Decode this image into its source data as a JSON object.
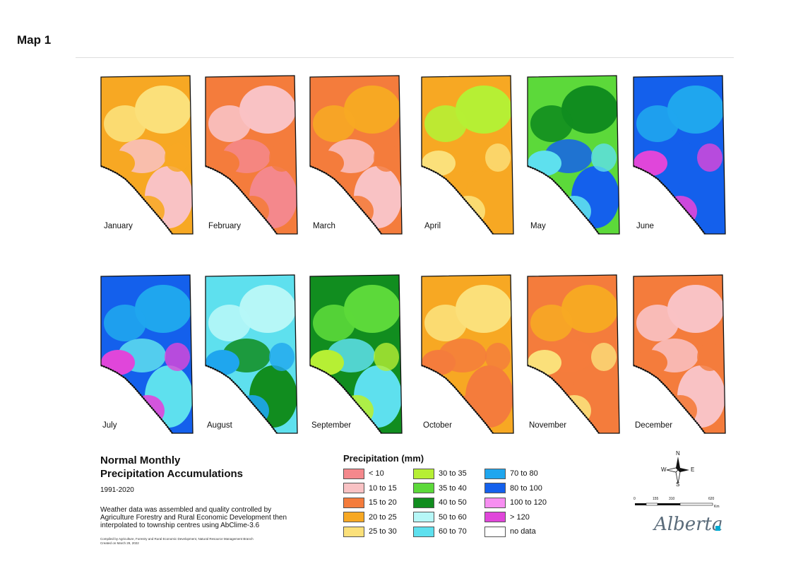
{
  "page_label": "Map 1",
  "title_line1": "Normal Monthly",
  "title_line2": "Precipitation Accumulations",
  "period": "1991-2020",
  "description": "Weather data was assembled and quality controlled by Agriculture Forestry and Rural Economic Development then interpolated to township centres using AbClime-3.6",
  "credit_line1": "Compiled by Agriculture, Forestry and Rural Economic Development, Natural Resource Management Branch",
  "credit_line2": "Created on March 29, 2022",
  "legend_title": "Precipitation (mm)",
  "legend": [
    {
      "label": "< 10",
      "color": "#f4888c"
    },
    {
      "label": "10 to 15",
      "color": "#f9c2c4"
    },
    {
      "label": "15 to 20",
      "color": "#f47c3c"
    },
    {
      "label": "20 to 25",
      "color": "#f7a823"
    },
    {
      "label": "25 to 30",
      "color": "#fbe07a"
    },
    {
      "label": "30 to 35",
      "color": "#b6ef34"
    },
    {
      "label": "35 to 40",
      "color": "#5cd93a"
    },
    {
      "label": "40 to 50",
      "color": "#118d1f"
    },
    {
      "label": "50 to  60",
      "color": "#b6f7f7"
    },
    {
      "label": "60 to 70",
      "color": "#5ee0ee"
    },
    {
      "label": "70 to 80",
      "color": "#1fa6ee"
    },
    {
      "label": "80 to 100",
      "color": "#1460ec"
    },
    {
      "label": "100 to 120",
      "color": "#f78ef1"
    },
    {
      "label": "> 120",
      "color": "#e046da"
    },
    {
      "label": "no data",
      "color": "#ffffff"
    }
  ],
  "months": [
    {
      "name": "January",
      "colors": [
        "#f7a823",
        "#fbe07a",
        "#f7a823",
        "#f9c2c4"
      ]
    },
    {
      "name": "February",
      "colors": [
        "#f47c3c",
        "#f9c2c4",
        "#f47c3c",
        "#f4888c"
      ]
    },
    {
      "name": "March",
      "colors": [
        "#f47c3c",
        "#f7a823",
        "#f47c3c",
        "#f9c2c4"
      ]
    },
    {
      "name": "April",
      "colors": [
        "#f7a823",
        "#b6ef34",
        "#fbe07a",
        "#f7a823"
      ]
    },
    {
      "name": "May",
      "colors": [
        "#5cd93a",
        "#118d1f",
        "#5ee0ee",
        "#1460ec"
      ]
    },
    {
      "name": "June",
      "colors": [
        "#1460ec",
        "#1fa6ee",
        "#e046da",
        "#1460ec"
      ]
    },
    {
      "name": "July",
      "colors": [
        "#1460ec",
        "#1fa6ee",
        "#e046da",
        "#5ee0ee"
      ]
    },
    {
      "name": "August",
      "colors": [
        "#5ee0ee",
        "#b6f7f7",
        "#1fa6ee",
        "#118d1f"
      ]
    },
    {
      "name": "September",
      "colors": [
        "#118d1f",
        "#5cd93a",
        "#b6ef34",
        "#5ee0ee"
      ]
    },
    {
      "name": "October",
      "colors": [
        "#f7a823",
        "#fbe07a",
        "#f47c3c",
        "#f47c3c"
      ]
    },
    {
      "name": "November",
      "colors": [
        "#f47c3c",
        "#f7a823",
        "#fbe07a",
        "#f47c3c"
      ]
    },
    {
      "name": "December",
      "colors": [
        "#f47c3c",
        "#f9c2c4",
        "#f47c3c",
        "#f9c2c4"
      ]
    }
  ],
  "compass": {
    "n": "N",
    "s": "S",
    "e": "E",
    "w": "W"
  },
  "scale_ticks": [
    "0",
    "155",
    "310",
    "620"
  ],
  "scale_unit": "Km",
  "logo_text": "Alberta"
}
